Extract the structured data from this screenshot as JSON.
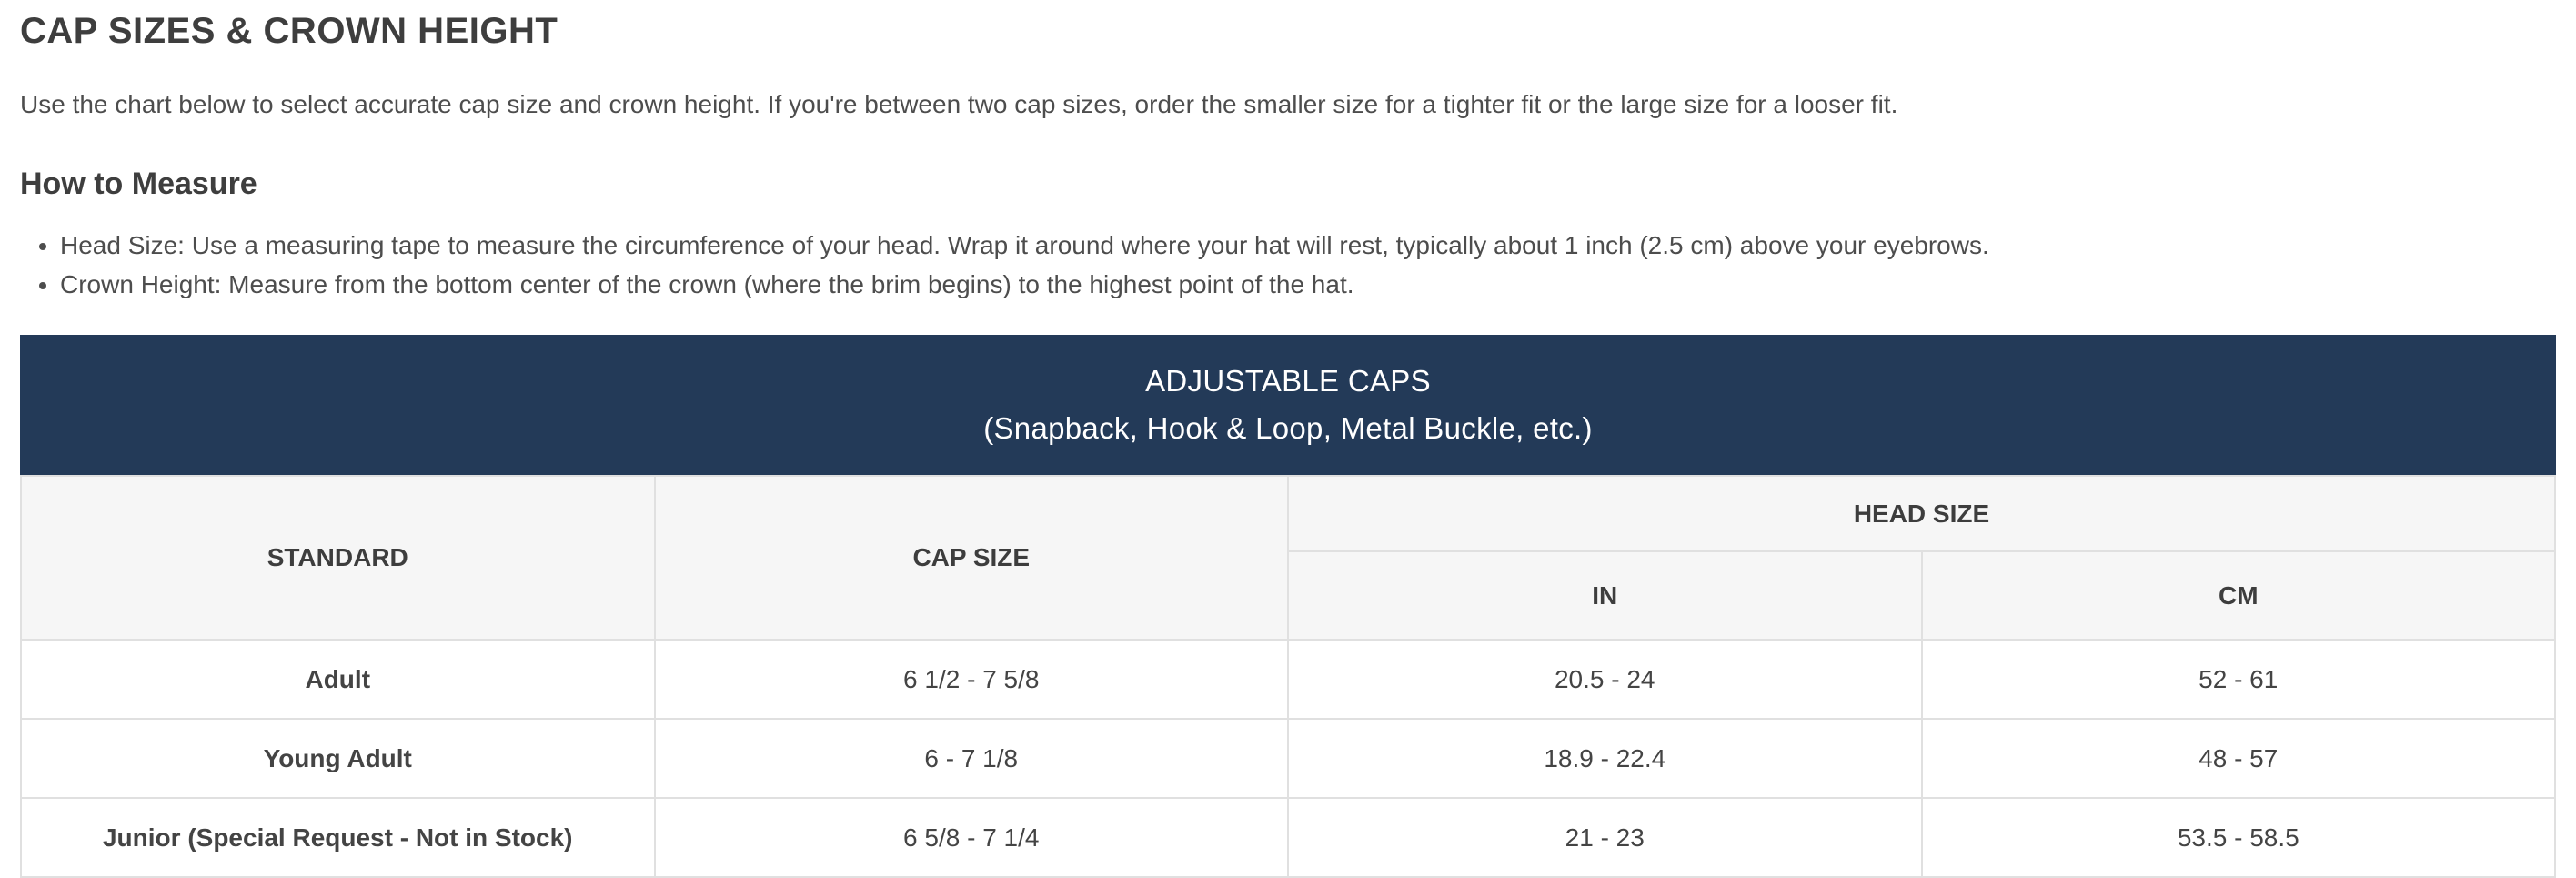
{
  "page": {
    "title": "CAP SIZES & CROWN HEIGHT",
    "intro": "Use the chart below to select accurate cap size and crown height. If you're between two cap sizes, order the smaller size for a tighter fit or the large size for a looser fit.",
    "how_to_measure": {
      "heading": "How to Measure",
      "bullets": [
        "Head Size: Use a measuring tape to measure the circumference of your head. Wrap it around where your hat will rest, typically about 1 inch (2.5 cm) above your eyebrows.",
        "Crown Height: Measure from the bottom center of the crown (where the brim begins) to the highest point of the hat."
      ]
    }
  },
  "size_table": {
    "banner": {
      "title": "ADJUSTABLE CAPS",
      "subtitle": "(Snapback, Hook & Loop, Metal Buckle, etc.)"
    },
    "columns": {
      "standard": "STANDARD",
      "cap_size": "CAP SIZE",
      "head_size": "HEAD SIZE",
      "in": "IN",
      "cm": "CM"
    },
    "rows": [
      {
        "standard": "Adult",
        "cap_size": "6 1/2 - 7 5/8",
        "head_in": "20.5 - 24",
        "head_cm": "52 - 61"
      },
      {
        "standard": "Young Adult",
        "cap_size": "6 - 7 1/8",
        "head_in": "18.9 - 22.4",
        "head_cm": "48 - 57"
      },
      {
        "standard": "Junior (Special Request - Not in Stock)",
        "cap_size": "6 5/8 - 7 1/4",
        "head_in": "21 - 23",
        "head_cm": "53.5 - 58.5"
      }
    ]
  },
  "colors": {
    "banner_navy": "#233A58",
    "header_bg": "#F6F6F6",
    "border": "#E0E0E0",
    "heading_text": "#3E3E3E",
    "body_text": "#4D4D4D"
  }
}
